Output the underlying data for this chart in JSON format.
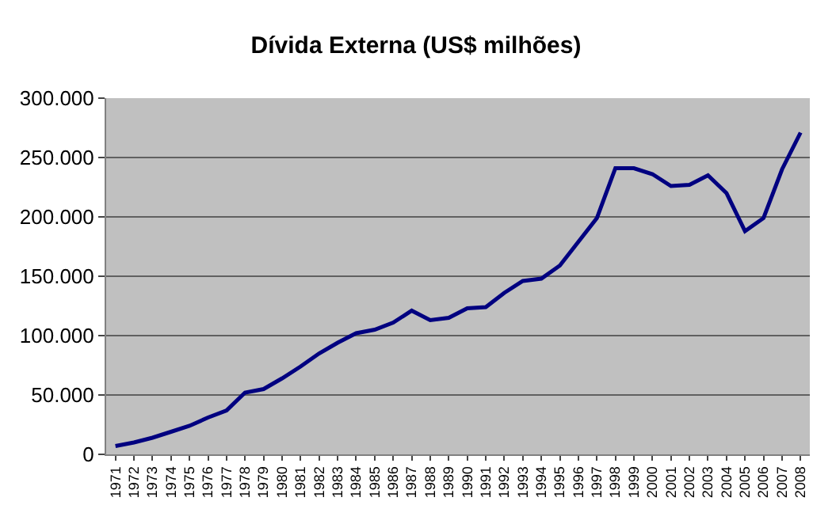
{
  "chart_data": {
    "type": "line",
    "title": "Dívida Externa (US$ milhões)",
    "categories": [
      "1971",
      "1972",
      "1973",
      "1974",
      "1975",
      "1976",
      "1977",
      "1978",
      "1979",
      "1980",
      "1981",
      "1982",
      "1983",
      "1984",
      "1985",
      "1986",
      "1987",
      "1988",
      "1989",
      "1990",
      "1991",
      "1992",
      "1993",
      "1994",
      "1995",
      "1996",
      "1997",
      "1998",
      "1999",
      "2000",
      "2001",
      "2002",
      "2003",
      "2004",
      "2005",
      "2006",
      "2007",
      "2008"
    ],
    "series": [
      {
        "color": "#000080",
        "values": [
          7000,
          10000,
          14000,
          19000,
          24000,
          31000,
          37000,
          52000,
          55000,
          64000,
          74000,
          85000,
          94000,
          102000,
          105000,
          111000,
          121000,
          113000,
          115000,
          123000,
          124000,
          136000,
          146000,
          148000,
          159000,
          179000,
          199000,
          241000,
          241000,
          236000,
          226000,
          227000,
          235000,
          220000,
          188000,
          199000,
          240000,
          271000
        ]
      }
    ],
    "ylim": [
      0,
      300000
    ],
    "yticks": [
      {
        "value": 0,
        "label": "0"
      },
      {
        "value": 50000,
        "label": "50.000"
      },
      {
        "value": 100000,
        "label": "100.000"
      },
      {
        "value": 150000,
        "label": "150.000"
      },
      {
        "value": 200000,
        "label": "200.000"
      },
      {
        "value": 250000,
        "label": "250.000"
      },
      {
        "value": 300000,
        "label": "300.000"
      }
    ],
    "grid": "y",
    "marker": "none",
    "line_style": "solid"
  }
}
